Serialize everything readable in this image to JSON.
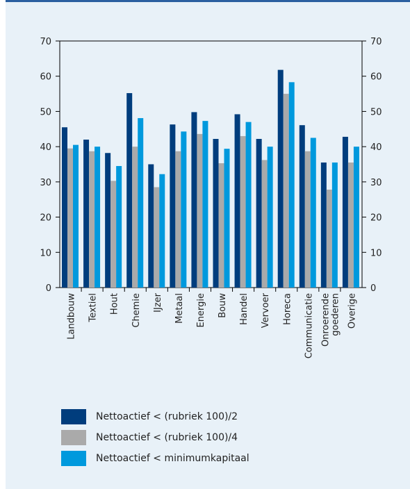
{
  "chart_data": {
    "type": "bar",
    "categories": [
      "Landbouw",
      "Textiel",
      "Hout",
      "Chemie",
      "IJzer",
      "Metaal",
      "Energie",
      "Bouw",
      "Handel",
      "Vervoer",
      "Horeca",
      "Communicatie",
      "Onroerende goederen",
      "Overige"
    ],
    "category_lines": [
      [
        "Landbouw"
      ],
      [
        "Textiel"
      ],
      [
        "Hout"
      ],
      [
        "Chemie"
      ],
      [
        "IJzer"
      ],
      [
        "Metaal"
      ],
      [
        "Energie"
      ],
      [
        "Bouw"
      ],
      [
        "Handel"
      ],
      [
        "Vervoer"
      ],
      [
        "Horeca"
      ],
      [
        "Communicatie"
      ],
      [
        "Onroerende",
        "goederen"
      ],
      [
        "Overige"
      ]
    ],
    "series": [
      {
        "name": "Nettoactief < (rubriek 100)/2",
        "color": "#003d7d",
        "values": [
          45.5,
          42,
          38.2,
          55.2,
          35,
          46.3,
          49.8,
          42.2,
          49.2,
          42.2,
          61.8,
          46.1,
          35.5,
          42.8
        ]
      },
      {
        "name": "Nettoactief < (rubriek 100)/4",
        "color": "#aaaaaa",
        "values": [
          39.5,
          38.7,
          30.3,
          40,
          28.5,
          38.7,
          43.6,
          35.3,
          43,
          36.2,
          55,
          38.7,
          27.8,
          35.5
        ]
      },
      {
        "name": "Nettoactief < minimumkapitaal",
        "color": "#0099dd",
        "values": [
          40.5,
          40,
          34.5,
          48.1,
          32.2,
          44.3,
          47.3,
          39.4,
          47,
          40,
          58.3,
          42.5,
          35.5,
          40
        ]
      }
    ],
    "ylim": [
      0,
      70
    ],
    "yticks": [
      "0",
      "10",
      "20",
      "30",
      "40",
      "50",
      "60",
      "70"
    ],
    "xlabel": "",
    "ylabel": "",
    "grid": false,
    "legend_position": "bottom"
  }
}
